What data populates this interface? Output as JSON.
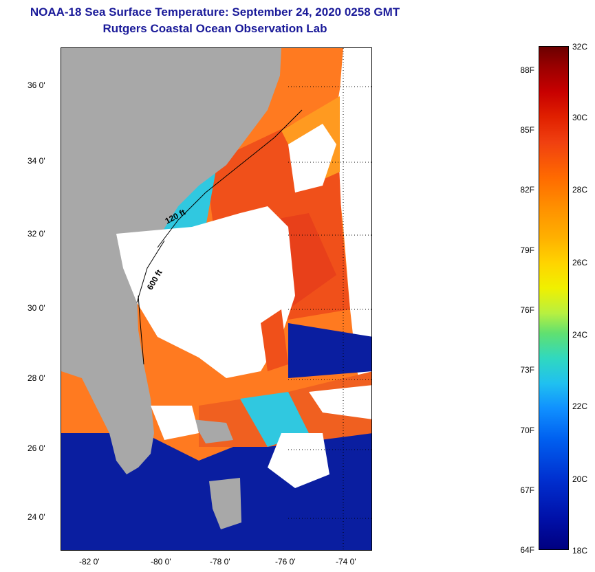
{
  "title": {
    "line1": "NOAA-18 Sea Surface Temperature:  September 24, 2020 0258 GMT",
    "line2": "Rutgers Coastal Ocean Observation Lab"
  },
  "map": {
    "lat_labels": [
      "36 0'",
      "34 0'",
      "32 0'",
      "30 0'",
      "28 0'",
      "26 0'",
      "24 0'"
    ],
    "lon_labels": [
      "-82 0'",
      "-80 0'",
      "-78 0'",
      "-76 0'",
      "-74 0'"
    ],
    "contour_labels": [
      "120 ft",
      "600 ft"
    ],
    "colors": {
      "land": "#a8a8a8",
      "cloud": "#ffffff",
      "warm": "#ff6a1a",
      "hot": "#e8401a",
      "cool": "#0a1ea0",
      "mid": "#30c8e0"
    }
  },
  "colorbar": {
    "celsius_labels": [
      "32C",
      "30C",
      "28C",
      "26C",
      "24C",
      "22C",
      "20C",
      "18C"
    ],
    "fahrenheit_labels": [
      "88F",
      "85F",
      "82F",
      "79F",
      "76F",
      "73F",
      "70F",
      "67F",
      "64F"
    ],
    "range_c": [
      18,
      32
    ],
    "range_f": [
      64,
      90
    ]
  }
}
